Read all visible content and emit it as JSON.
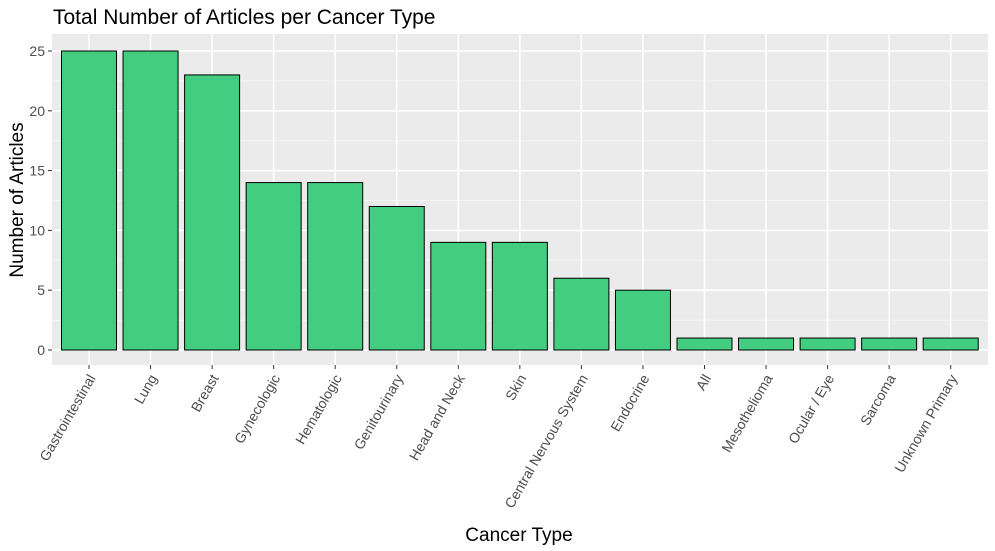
{
  "chart_data": {
    "type": "bar",
    "title": "Total Number of Articles per Cancer Type",
    "xlabel": "Cancer Type",
    "ylabel": "Number of Articles",
    "categories": [
      "Gastrointestinal",
      "Lung",
      "Breast",
      "Gynecologic",
      "Hematologic",
      "Genitourinary",
      "Head and Neck",
      "Skin",
      "Central Nervous System",
      "Endocrine",
      "All",
      "Mesothelioma",
      "Ocular / Eye",
      "Sarcoma",
      "Unknown Primary"
    ],
    "values": [
      25,
      25,
      23,
      14,
      14,
      12,
      9,
      9,
      6,
      5,
      1,
      1,
      1,
      1,
      1
    ],
    "ylim": [
      0,
      25
    ],
    "yticks": [
      0,
      5,
      10,
      15,
      20,
      25
    ],
    "grid": true,
    "legend": "none",
    "colors": {
      "bar_fill": "#43CD80",
      "bar_stroke": "#000000",
      "panel_background": "#EBEBEB",
      "grid_major": "#FFFFFF",
      "grid_minor": "#F5F5F5",
      "tick_text": "#4D4D4D",
      "tick_mark": "#333333"
    }
  }
}
